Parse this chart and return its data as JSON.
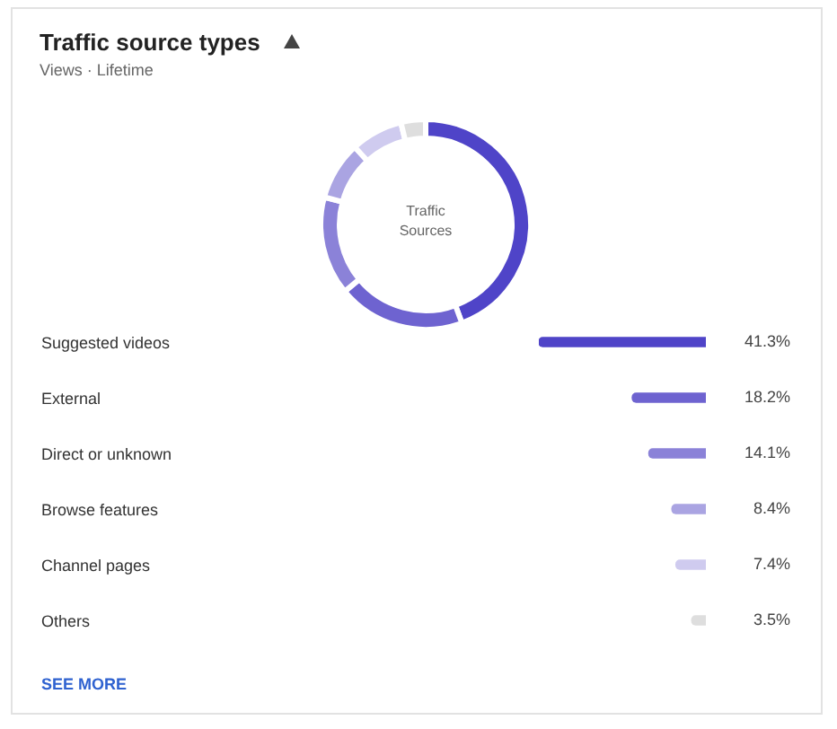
{
  "chart_data": [
    {
      "type": "donut",
      "title": "Traffic source types",
      "subtitle": "Views · Lifetime",
      "annotations": [
        "Traffic\nSources"
      ],
      "categories": [
        null,
        null,
        null,
        null,
        null,
        null
      ],
      "values": [
        44.4,
        19.6,
        15.2,
        9.0,
        8.0,
        3.8
      ],
      "colors": [
        "#4f44c8",
        "#6e63d0",
        "#8b82d8",
        "#aaa4e2",
        "#cfcbef",
        "#dedede"
      ],
      "legend": false
    },
    {
      "type": "bar",
      "orientation": "horizontal",
      "categories": [
        "Suggested videos",
        "External",
        "Direct or unknown",
        "Browse features",
        "Channel pages",
        "Others"
      ],
      "values": [
        41.3,
        18.2,
        14.1,
        8.4,
        7.4,
        3.5
      ],
      "value_labels": [
        "41.3%",
        "18.2%",
        "14.1%",
        "8.4%",
        "7.4%",
        "3.5%"
      ],
      "colors": [
        "#4f44c8",
        "#6e63d0",
        "#8b82d8",
        "#aaa4e2",
        "#cfcbef",
        "#dedede"
      ],
      "annotations": [
        "SEE MORE"
      ],
      "legend": false
    }
  ]
}
